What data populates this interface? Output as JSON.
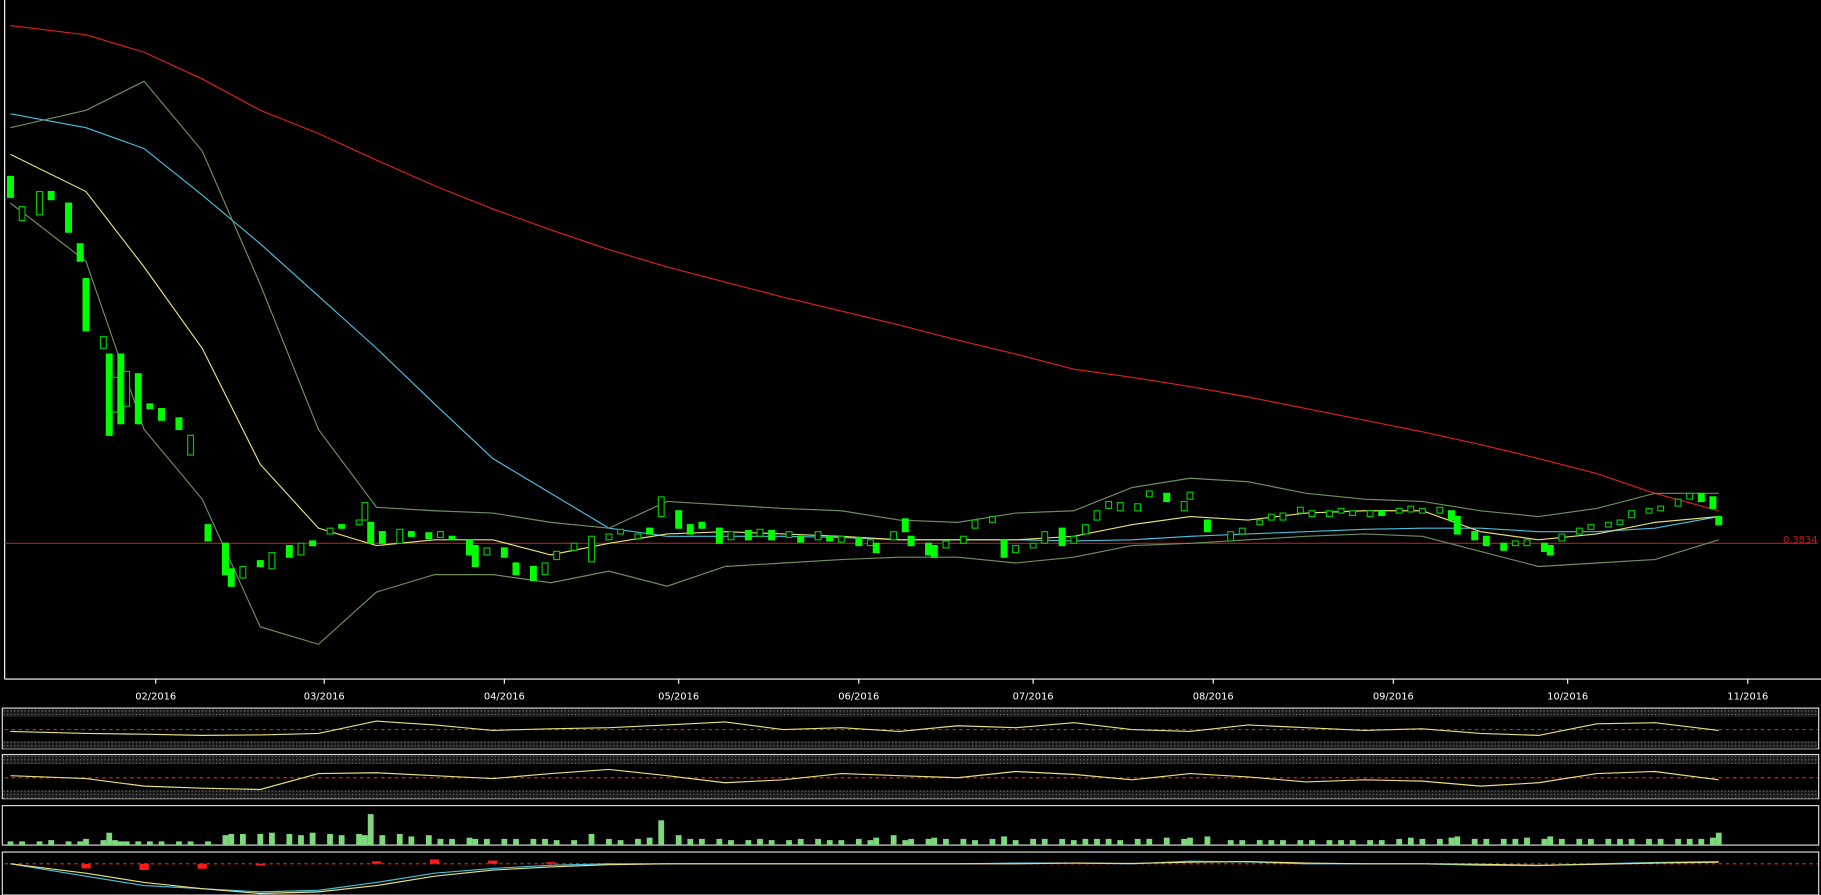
{
  "chart_data": {
    "type": "candlestick",
    "xlim": [
      6,
      318
    ],
    "ylim": [
      0.2664,
      0.8334
    ],
    "xticks": [
      {
        "value": 32,
        "label": "02/2016"
      },
      {
        "value": 61,
        "label": "03/2016"
      },
      {
        "value": 92,
        "label": "04/2016"
      },
      {
        "value": 122,
        "label": "05/2016"
      },
      {
        "value": 153,
        "label": "06/2016"
      },
      {
        "value": 183,
        "label": "07/2016"
      },
      {
        "value": 214,
        "label": "08/2016"
      },
      {
        "value": 245,
        "label": "09/2016"
      },
      {
        "value": 275,
        "label": "10/2016"
      },
      {
        "value": 306,
        "label": "11/2016"
      }
    ],
    "up_color": "#00c800",
    "down_color": "#00ff00",
    "last_price": 0.3834,
    "last_price_color": "#c01818",
    "candles": [
      [
        7,
        0.6994,
        0.6814
      ],
      [
        9,
        0.6614,
        0.6734
      ],
      [
        12,
        0.6664,
        0.6864
      ],
      [
        14,
        0.6864,
        0.6794
      ],
      [
        17,
        0.6764,
        0.6514
      ],
      [
        19,
        0.6414,
        0.6264
      ],
      [
        20,
        0.6114,
        0.5664
      ],
      [
        23,
        0.5514,
        0.5614
      ],
      [
        24,
        0.5464,
        0.4764
      ],
      [
        25,
        0.4964,
        0.5264
      ],
      [
        26,
        0.5464,
        0.4864
      ],
      [
        27,
        0.5014,
        0.5314
      ],
      [
        29,
        0.5294,
        0.4864
      ],
      [
        31,
        0.5034,
        0.4994
      ],
      [
        33,
        0.4994,
        0.4894
      ],
      [
        36,
        0.4914,
        0.4814
      ],
      [
        38,
        0.4594,
        0.4764
      ],
      [
        41,
        0.3994,
        0.3854
      ],
      [
        44,
        0.3834,
        0.3564
      ],
      [
        45,
        0.3614,
        0.3464
      ],
      [
        47,
        0.3534,
        0.3634
      ],
      [
        50,
        0.3684,
        0.3634
      ],
      [
        52,
        0.3614,
        0.3754
      ],
      [
        55,
        0.3814,
        0.3714
      ],
      [
        57,
        0.3734,
        0.3834
      ],
      [
        59,
        0.3854,
        0.3814
      ],
      [
        62,
        0.3914,
        0.3964
      ],
      [
        64,
        0.3994,
        0.3964
      ],
      [
        67,
        0.3994,
        0.4034
      ],
      [
        68,
        0.4034,
        0.4184
      ],
      [
        69,
        0.4014,
        0.3834
      ],
      [
        71,
        0.3934,
        0.3834
      ],
      [
        74,
        0.3834,
        0.3954
      ],
      [
        76,
        0.3934,
        0.3894
      ],
      [
        79,
        0.3924,
        0.3874
      ],
      [
        81,
        0.3884,
        0.3934
      ],
      [
        83,
        0.3894,
        0.3864
      ],
      [
        86,
        0.3864,
        0.3734
      ],
      [
        87,
        0.3814,
        0.3634
      ],
      [
        89,
        0.3734,
        0.3794
      ],
      [
        92,
        0.3794,
        0.3714
      ],
      [
        94,
        0.3664,
        0.3564
      ],
      [
        97,
        0.3634,
        0.3514
      ],
      [
        99,
        0.3564,
        0.3664
      ],
      [
        101,
        0.3694,
        0.3764
      ],
      [
        104,
        0.3774,
        0.3834
      ],
      [
        107,
        0.3674,
        0.3894
      ],
      [
        110,
        0.3864,
        0.3914
      ],
      [
        112,
        0.3914,
        0.3954
      ],
      [
        115,
        0.3874,
        0.3914
      ],
      [
        117,
        0.3964,
        0.3914
      ],
      [
        119,
        0.4064,
        0.4234
      ],
      [
        122,
        0.4114,
        0.3964
      ],
      [
        124,
        0.3994,
        0.3914
      ],
      [
        126,
        0.4014,
        0.3964
      ],
      [
        129,
        0.3964,
        0.3834
      ],
      [
        131,
        0.3864,
        0.3934
      ],
      [
        134,
        0.3944,
        0.3864
      ],
      [
        136,
        0.3894,
        0.3954
      ],
      [
        138,
        0.3944,
        0.3864
      ],
      [
        141,
        0.3884,
        0.3934
      ],
      [
        143,
        0.3894,
        0.3844
      ],
      [
        146,
        0.3864,
        0.3934
      ],
      [
        148,
        0.3894,
        0.3854
      ],
      [
        150,
        0.3844,
        0.3894
      ],
      [
        153,
        0.3884,
        0.3814
      ],
      [
        155,
        0.3814,
        0.3864
      ],
      [
        156,
        0.3834,
        0.3754
      ],
      [
        159,
        0.3864,
        0.3934
      ],
      [
        161,
        0.4044,
        0.3934
      ],
      [
        162,
        0.3894,
        0.3814
      ],
      [
        165,
        0.3834,
        0.3734
      ],
      [
        166,
        0.3814,
        0.3714
      ],
      [
        168,
        0.3794,
        0.3854
      ],
      [
        171,
        0.3834,
        0.3894
      ],
      [
        173,
        0.3964,
        0.4034
      ],
      [
        176,
        0.4014,
        0.4064
      ],
      [
        178,
        0.3864,
        0.3714
      ],
      [
        180,
        0.3754,
        0.3814
      ],
      [
        183,
        0.3794,
        0.3834
      ],
      [
        185,
        0.3834,
        0.3934
      ],
      [
        188,
        0.3964,
        0.3814
      ],
      [
        190,
        0.3834,
        0.3894
      ],
      [
        192,
        0.3914,
        0.3994
      ],
      [
        194,
        0.4034,
        0.4114
      ],
      [
        196,
        0.4134,
        0.4194
      ],
      [
        198,
        0.4114,
        0.4184
      ],
      [
        201,
        0.4114,
        0.4174
      ],
      [
        203,
        0.4234,
        0.4284
      ],
      [
        206,
        0.4264,
        0.4194
      ],
      [
        209,
        0.4114,
        0.4194
      ],
      [
        210,
        0.4214,
        0.4274
      ],
      [
        213,
        0.4034,
        0.3934
      ],
      [
        217,
        0.3854,
        0.3934
      ],
      [
        219,
        0.3914,
        0.3964
      ],
      [
        222,
        0.3994,
        0.4034
      ],
      [
        224,
        0.4034,
        0.4084
      ],
      [
        226,
        0.4034,
        0.4094
      ],
      [
        229,
        0.4094,
        0.4144
      ],
      [
        231,
        0.4064,
        0.4114
      ],
      [
        234,
        0.4064,
        0.4114
      ],
      [
        236,
        0.4094,
        0.4134
      ],
      [
        238,
        0.4074,
        0.4114
      ],
      [
        241,
        0.4064,
        0.4114
      ],
      [
        243,
        0.4114,
        0.4074
      ],
      [
        246,
        0.4094,
        0.4134
      ],
      [
        248,
        0.4104,
        0.4154
      ],
      [
        250,
        0.4094,
        0.4134
      ],
      [
        253,
        0.4094,
        0.4144
      ],
      [
        255,
        0.4114,
        0.4034
      ],
      [
        256,
        0.4064,
        0.3914
      ],
      [
        259,
        0.3934,
        0.3864
      ],
      [
        261,
        0.3894,
        0.3814
      ],
      [
        264,
        0.3834,
        0.3774
      ],
      [
        266,
        0.3814,
        0.3854
      ],
      [
        268,
        0.3814,
        0.3864
      ],
      [
        271,
        0.3834,
        0.3764
      ],
      [
        272,
        0.3814,
        0.3734
      ],
      [
        274,
        0.3854,
        0.3914
      ],
      [
        277,
        0.3914,
        0.3964
      ],
      [
        279,
        0.3954,
        0.3994
      ],
      [
        282,
        0.3974,
        0.4014
      ],
      [
        284,
        0.3994,
        0.4034
      ],
      [
        286,
        0.4054,
        0.4114
      ],
      [
        289,
        0.4094,
        0.4134
      ],
      [
        291,
        0.4114,
        0.4154
      ],
      [
        294,
        0.4154,
        0.4214
      ],
      [
        296,
        0.4214,
        0.4264
      ],
      [
        298,
        0.4264,
        0.4194
      ],
      [
        300,
        0.4234,
        0.4134
      ],
      [
        301,
        0.4064,
        0.3994
      ]
    ],
    "line_x": [
      7,
      20,
      30,
      40,
      50,
      60,
      70,
      80,
      90,
      100,
      110,
      120,
      130,
      140,
      150,
      160,
      170,
      180,
      190,
      200,
      210,
      220,
      230,
      240,
      250,
      260,
      270,
      280,
      290,
      301
    ],
    "overlays": [
      {
        "color": "#d82020",
        "values": [
          0.8294,
          0.8214,
          0.8064,
          0.7834,
          0.7564,
          0.7364,
          0.7134,
          0.6914,
          0.6714,
          0.6534,
          0.6364,
          0.6214,
          0.6084,
          0.5954,
          0.5834,
          0.5714,
          0.5584,
          0.5464,
          0.5334,
          0.5264,
          0.5184,
          0.5094,
          0.4994,
          0.4894,
          0.4794,
          0.4684,
          0.4564,
          0.4434,
          0.4264,
          0.4114
        ]
      },
      {
        "color": "#48c0dc",
        "values": [
          0.7534,
          0.7414,
          0.7234,
          0.6834,
          0.6414,
          0.5964,
          0.5514,
          0.5034,
          0.4564,
          0.4264,
          0.3964,
          0.3894,
          0.3894,
          0.3894,
          0.3884,
          0.3864,
          0.3864,
          0.3864,
          0.3854,
          0.3864,
          0.3894,
          0.3914,
          0.3934,
          0.3954,
          0.3964,
          0.3964,
          0.3934,
          0.3934,
          0.3964,
          0.4064
        ]
      },
      {
        "color": "#e6e07a",
        "values": [
          0.7184,
          0.6864,
          0.6214,
          0.5514,
          0.4514,
          0.3964,
          0.3814,
          0.3864,
          0.3864,
          0.3734,
          0.3834,
          0.3914,
          0.3934,
          0.3914,
          0.3894,
          0.3864,
          0.3864,
          0.3864,
          0.3894,
          0.3994,
          0.4064,
          0.4034,
          0.4094,
          0.4114,
          0.4114,
          0.3934,
          0.3864,
          0.3914,
          0.4014,
          0.4064
        ]
      },
      {
        "color": "#6e8e5e",
        "values": [
          0.7414,
          0.7564,
          0.7814,
          0.7214,
          0.6064,
          0.4814,
          0.4144,
          0.4114,
          0.4094,
          0.4014,
          0.3964,
          0.4194,
          0.4164,
          0.4134,
          0.4114,
          0.4034,
          0.4014,
          0.4094,
          0.4114,
          0.4314,
          0.4394,
          0.4364,
          0.4264,
          0.4214,
          0.4194,
          0.4114,
          0.4064,
          0.4134,
          0.4264,
          0.4264
        ]
      },
      {
        "color": "#6e8e5e",
        "values": [
          0.6764,
          0.6264,
          0.4814,
          0.4214,
          0.3114,
          0.2964,
          0.3414,
          0.3564,
          0.3564,
          0.3494,
          0.3594,
          0.3464,
          0.3634,
          0.3664,
          0.3694,
          0.3714,
          0.3714,
          0.3664,
          0.3714,
          0.3814,
          0.3834,
          0.3864,
          0.3894,
          0.3914,
          0.3894,
          0.3764,
          0.3634,
          0.3664,
          0.3694,
          0.3864
        ]
      }
    ],
    "panels": [
      {
        "type": "line",
        "ylim": [
          0,
          100
        ],
        "reference": 50,
        "reference_color": "#d82020",
        "shaded": true,
        "series": [
          {
            "color": "#e6e07a",
            "values": [
              45,
              40,
              38,
              35,
              36,
              40,
              72,
              62,
              48,
              52,
              55,
              62,
              70,
              50,
              55,
              45,
              60,
              55,
              68,
              50,
              45,
              62,
              55,
              48,
              52,
              40,
              35,
              65,
              68,
              48
            ]
          }
        ]
      },
      {
        "type": "line",
        "ylim": [
          0,
          100
        ],
        "reference": 50,
        "reference_color": "#d82020",
        "shaded": true,
        "series": [
          {
            "color": "#e6e07a",
            "values": [
              55,
              48,
              30,
              25,
              22,
              60,
              62,
              55,
              48,
              60,
              70,
              55,
              38,
              45,
              60,
              55,
              50,
              65,
              58,
              45,
              60,
              52,
              40,
              45,
              42,
              30,
              38,
              60,
              65,
              45
            ]
          }
        ]
      },
      {
        "type": "bar",
        "ylim": [
          0,
          30
        ],
        "color": "#7ed87e",
        "values": [
          3,
          3,
          3,
          4,
          3,
          3,
          5,
          4,
          10,
          4,
          3,
          3,
          3,
          3,
          3,
          3,
          3,
          3,
          8,
          9,
          9,
          9,
          10,
          9,
          8,
          10,
          9,
          8,
          9,
          8,
          25,
          8,
          9,
          7,
          8,
          5,
          5,
          6,
          5,
          5,
          5,
          5,
          5,
          5,
          4,
          4,
          9,
          5,
          4,
          5,
          6,
          20,
          8,
          5,
          5,
          5,
          4,
          4,
          5,
          4,
          4,
          5,
          5,
          4,
          4,
          5,
          4,
          6,
          8,
          4,
          5,
          5,
          6,
          5,
          5,
          4,
          5,
          7,
          4,
          5,
          5,
          5,
          4,
          5,
          5,
          5,
          4,
          5,
          5,
          6,
          5,
          6,
          7,
          4,
          4,
          4,
          4,
          4,
          4,
          4,
          4,
          4,
          4,
          4,
          4,
          5,
          6,
          5,
          5,
          6,
          7,
          5,
          5,
          5,
          5,
          6,
          5,
          7,
          5,
          5,
          5,
          5,
          5,
          5,
          5,
          5,
          5,
          5,
          5,
          6,
          10
        ]
      },
      {
        "type": "line",
        "ylim": [
          -10,
          3
        ],
        "reference": 0,
        "reference_color": "#d82020",
        "shaded": false,
        "histogram": {
          "color": "#ff1a1a",
          "values": [
            0,
            -1.5,
            -2,
            -1.6,
            -0.6,
            0,
            0.8,
            1.4,
            1,
            0.5,
            0.2,
            0,
            0,
            0,
            0,
            0,
            0,
            0,
            0,
            0,
            0,
            0,
            0,
            0,
            0,
            0,
            0,
            0,
            0,
            0
          ]
        },
        "series": [
          {
            "color": "#48c0dc",
            "values": [
              0,
              -4,
              -7,
              -8,
              -9,
              -8.5,
              -6,
              -3,
              -1.5,
              -0.5,
              0,
              0,
              0,
              0,
              0,
              0,
              0,
              0.2,
              0.2,
              0,
              0.8,
              0.6,
              0,
              0,
              0,
              -0.5,
              -0.6,
              0,
              0.4,
              0.7
            ]
          },
          {
            "color": "#e6e07a",
            "values": [
              0,
              -3,
              -6,
              -8,
              -9.5,
              -9,
              -7,
              -4,
              -2,
              -1,
              -0.3,
              0,
              0,
              0,
              0,
              0,
              0,
              0,
              0.2,
              0.1,
              0.5,
              0.7,
              0.2,
              0,
              0,
              -0.2,
              -0.5,
              -0.2,
              0.2,
              0.5
            ]
          }
        ]
      }
    ]
  }
}
